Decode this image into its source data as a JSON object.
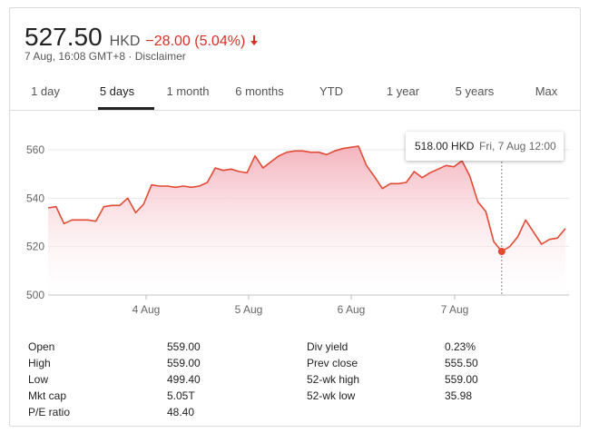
{
  "quote": {
    "price": "527.50",
    "currency": "HKD",
    "change": "−28.00 (5.04%)",
    "timestamp": "7 Aug, 16:08 GMT+8",
    "separator": "·",
    "disclaimer": "Disclaimer"
  },
  "tabs": [
    {
      "label": "1 day"
    },
    {
      "label": "5 days",
      "active": true
    },
    {
      "label": "1 month"
    },
    {
      "label": "6 months"
    },
    {
      "label": "YTD"
    },
    {
      "label": "1 year"
    },
    {
      "label": "5 years"
    },
    {
      "label": "Max"
    }
  ],
  "tooltip": {
    "price": "518.00 HKD",
    "date": "Fri, 7 Aug 12:00"
  },
  "colors": {
    "line": "#e24a33",
    "fill_top": "#f2aab5",
    "negative": "#d93025"
  },
  "chart_data": {
    "type": "area",
    "y_ticks": [
      "560",
      "540",
      "520",
      "500"
    ],
    "ylim": [
      500,
      565
    ],
    "x_labels": [
      "4 Aug",
      "5 Aug",
      "6 Aug",
      "7 Aug"
    ],
    "grid": true,
    "series": [
      {
        "values": [
          536,
          536.5,
          529.5,
          531,
          531,
          531,
          530.5,
          536.5,
          537,
          537,
          540,
          534,
          537.5,
          545.5,
          545,
          545,
          544.5,
          545,
          544.5,
          545,
          546.5,
          552.5,
          551.5,
          552,
          551,
          550.5,
          557.5,
          552.5,
          555,
          557.5,
          559,
          559.5,
          559.5,
          559,
          559,
          558,
          559.5,
          560.5,
          561,
          561.5,
          553.5,
          549,
          544,
          546,
          546,
          546.5,
          551,
          548.5,
          550.5,
          552,
          553.5,
          553,
          555.5,
          549,
          538.5,
          534.5,
          522,
          518,
          520,
          524,
          531,
          526,
          521,
          523,
          523.5,
          527.5
        ]
      }
    ],
    "highlight": {
      "index": 57,
      "value": 518.0
    }
  },
  "stats": {
    "left": [
      {
        "label": "Open",
        "value": "559.00"
      },
      {
        "label": "High",
        "value": "559.00"
      },
      {
        "label": "Low",
        "value": "499.40"
      },
      {
        "label": "Mkt cap",
        "value": "5.05T"
      },
      {
        "label": "P/E ratio",
        "value": "48.40"
      }
    ],
    "right": [
      {
        "label": "Div yield",
        "value": "0.23%"
      },
      {
        "label": "Prev close",
        "value": "555.50"
      },
      {
        "label": "52-wk high",
        "value": "559.00"
      },
      {
        "label": "52-wk low",
        "value": "35.98"
      }
    ]
  }
}
